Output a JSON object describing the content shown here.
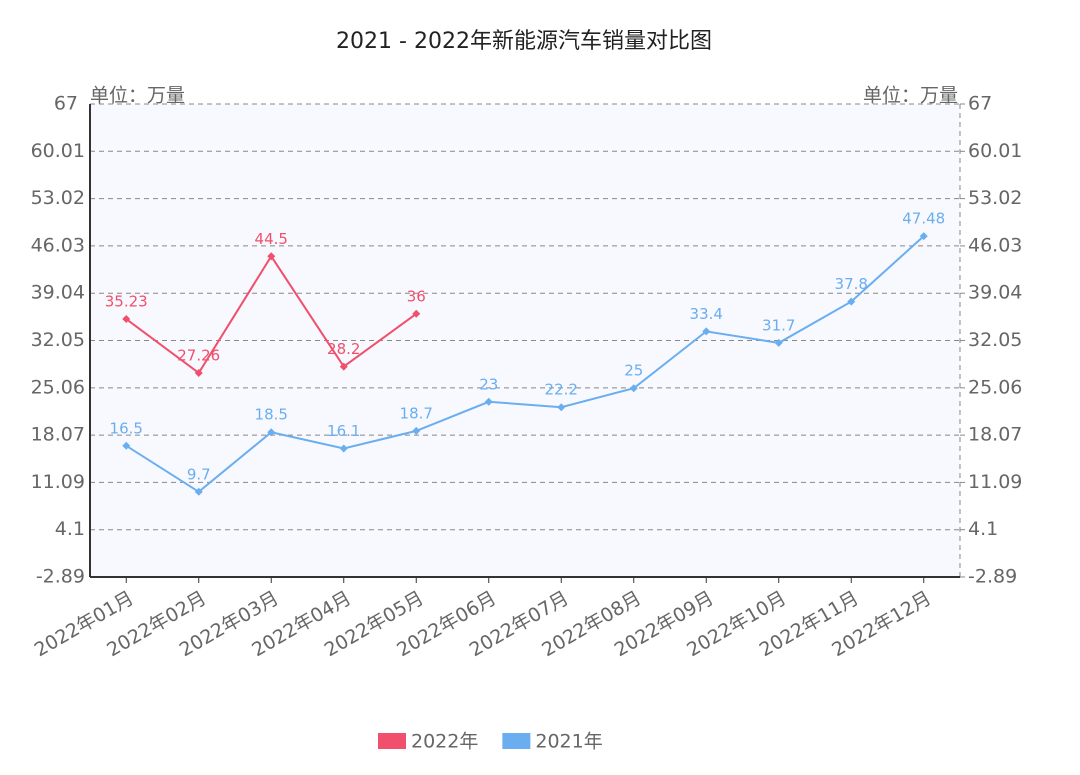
{
  "chart_data": {
    "type": "line",
    "title": "2021 - 2022年新能源汽车销量对比图",
    "y_label": "单位：万量",
    "y2_label": "单位：万量",
    "categories": [
      "2022年01月",
      "2022年02月",
      "2022年03月",
      "2022年04月",
      "2022年05月",
      "2022年06月",
      "2022年07月",
      "2022年08月",
      "2022年09月",
      "2022年10月",
      "2022年11月",
      "2022年12月"
    ],
    "series": [
      {
        "name": "2022年",
        "color": "#f0506c",
        "values": [
          35.23,
          27.26,
          44.5,
          28.2,
          36,
          null,
          null,
          null,
          null,
          null,
          null,
          null
        ]
      },
      {
        "name": "2021年",
        "color": "#6aaef0",
        "values": [
          16.5,
          9.7,
          18.5,
          16.1,
          18.7,
          23,
          22.2,
          25,
          33.4,
          31.7,
          37.8,
          47.48
        ]
      }
    ],
    "ylim": [
      -2.89,
      67
    ],
    "yticks": [
      -2.89,
      4.1,
      11.09,
      18.07,
      25.06,
      32.05,
      39.04,
      46.03,
      53.02,
      60.01,
      67
    ],
    "y2lim": [
      -2.89,
      67
    ],
    "y2ticks": [
      -2.89,
      4.1,
      11.09,
      18.07,
      25.06,
      32.05,
      39.04,
      46.03,
      53.02,
      60.01,
      67
    ],
    "grid": true,
    "legend": "bottom"
  }
}
